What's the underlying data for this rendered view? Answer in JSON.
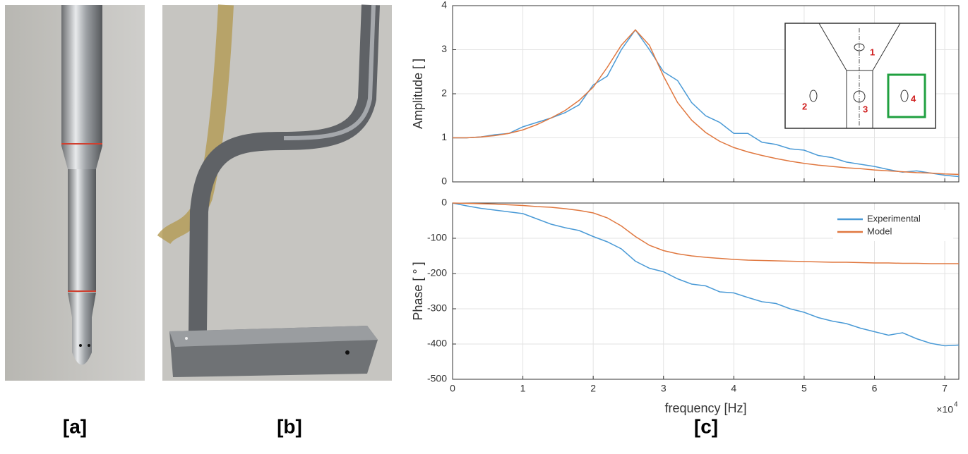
{
  "panel_labels": [
    "[a]",
    "[b]",
    "[c]"
  ],
  "inset_labels": [
    "1",
    "2",
    "3",
    "4"
  ],
  "chart_data": [
    {
      "type": "line",
      "ylabel": "Amplitude [ ]",
      "x": [
        0,
        2000,
        4000,
        6000,
        8000,
        10000,
        12000,
        14000,
        16000,
        18000,
        20000,
        22000,
        24000,
        26000,
        28000,
        30000,
        32000,
        34000,
        36000,
        38000,
        40000,
        42000,
        44000,
        46000,
        48000,
        50000,
        52000,
        54000,
        56000,
        58000,
        60000,
        62000,
        64000,
        66000,
        68000,
        70000,
        72000
      ],
      "series": [
        {
          "color": "#4a9ad6",
          "values": [
            1.0,
            1.0,
            1.02,
            1.07,
            1.1,
            1.25,
            1.35,
            1.45,
            1.57,
            1.75,
            2.2,
            2.4,
            3.0,
            3.45,
            3.0,
            2.5,
            2.3,
            1.8,
            1.5,
            1.35,
            1.1,
            1.1,
            0.9,
            0.85,
            0.75,
            0.72,
            0.6,
            0.55,
            0.45,
            0.4,
            0.35,
            0.28,
            0.22,
            0.25,
            0.2,
            0.15,
            0.12
          ]
        },
        {
          "color": "#e07840",
          "values": [
            1.0,
            1.0,
            1.02,
            1.05,
            1.1,
            1.18,
            1.3,
            1.45,
            1.62,
            1.85,
            2.15,
            2.6,
            3.1,
            3.45,
            3.1,
            2.4,
            1.8,
            1.4,
            1.12,
            0.92,
            0.78,
            0.68,
            0.6,
            0.53,
            0.47,
            0.42,
            0.38,
            0.35,
            0.32,
            0.3,
            0.27,
            0.25,
            0.23,
            0.21,
            0.2,
            0.18,
            0.17
          ]
        }
      ],
      "xlim": [
        0,
        72000
      ],
      "xticks": [
        0,
        10000,
        20000,
        30000,
        40000,
        50000,
        60000,
        70000
      ],
      "ylim": [
        0,
        4
      ],
      "yticks": [
        0,
        1,
        2,
        3,
        4
      ],
      "grid": true
    },
    {
      "type": "line",
      "ylabel": "Phase [ ° ]",
      "xlabel": "frequency [Hz]",
      "x_scale_base": "×10",
      "x_scale_exponent": "4",
      "x": [
        0,
        2000,
        4000,
        6000,
        8000,
        10000,
        12000,
        14000,
        16000,
        18000,
        20000,
        22000,
        24000,
        26000,
        28000,
        30000,
        32000,
        34000,
        36000,
        38000,
        40000,
        42000,
        44000,
        46000,
        48000,
        50000,
        52000,
        54000,
        56000,
        58000,
        60000,
        62000,
        64000,
        66000,
        68000,
        70000,
        72000
      ],
      "series": [
        {
          "name": "Experimental",
          "color": "#4a9ad6",
          "values": [
            0,
            -8,
            -15,
            -20,
            -25,
            -30,
            -45,
            -60,
            -70,
            -78,
            -95,
            -110,
            -130,
            -165,
            -185,
            -195,
            -215,
            -230,
            -235,
            -252,
            -255,
            -268,
            -280,
            -285,
            -300,
            -310,
            -325,
            -335,
            -342,
            -355,
            -365,
            -375,
            -368,
            -385,
            -398,
            -405,
            -403
          ]
        },
        {
          "name": "Model",
          "color": "#e07840",
          "values": [
            0,
            -1,
            -2,
            -3,
            -5,
            -7,
            -10,
            -12,
            -16,
            -21,
            -28,
            -42,
            -65,
            -95,
            -120,
            -135,
            -144,
            -150,
            -154,
            -157,
            -160,
            -162,
            -163,
            -164,
            -165,
            -166,
            -167,
            -168,
            -168,
            -169,
            -170,
            -170,
            -171,
            -171,
            -172,
            -172,
            -172
          ]
        }
      ],
      "xlim": [
        0,
        72000
      ],
      "xticks": [
        0,
        {
          "value": 10000,
          "label": "1"
        },
        {
          "value": 20000,
          "label": "2"
        },
        {
          "value": 30000,
          "label": "3"
        },
        {
          "value": 40000,
          "label": "4"
        },
        {
          "value": 50000,
          "label": "5"
        },
        {
          "value": 60000,
          "label": "6"
        },
        {
          "value": 70000,
          "label": "7"
        }
      ],
      "ylim": [
        -500,
        0
      ],
      "yticks": [
        -500,
        -400,
        -300,
        -200,
        -100,
        0
      ],
      "grid": true,
      "legend": "upper right"
    }
  ]
}
